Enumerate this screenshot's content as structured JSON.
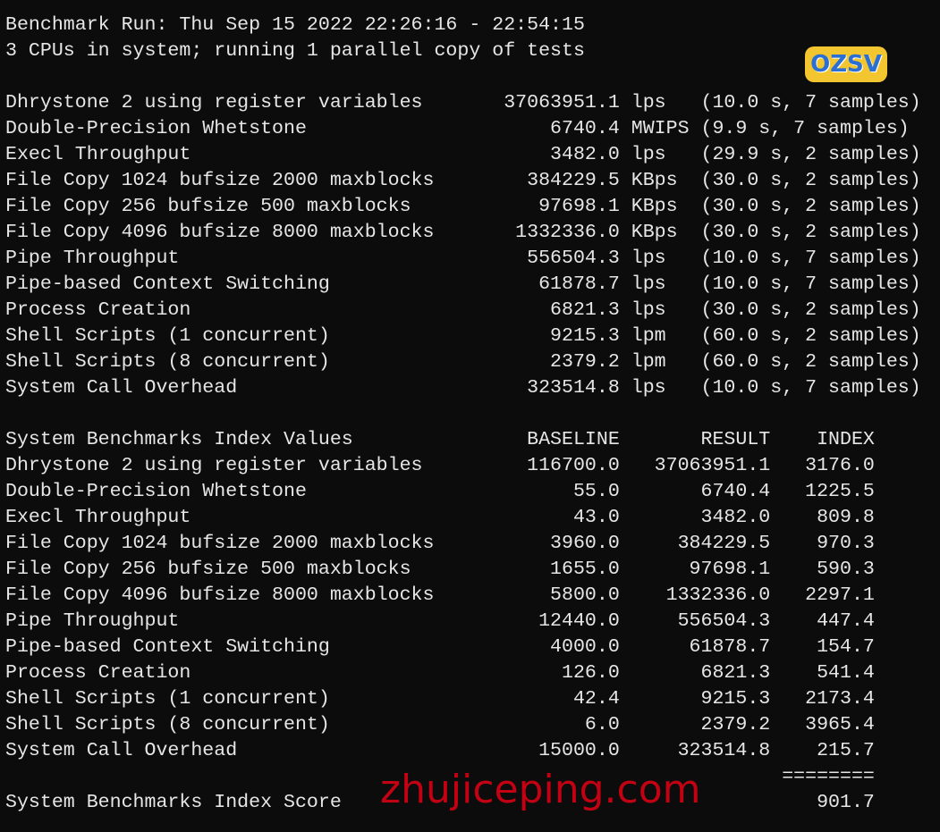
{
  "terminal": {
    "separator": "--------------------------------------------------------------------------------",
    "run_line": "Benchmark Run: Thu Sep 15 2022 22:26:16 - 22:54:15",
    "cpu_line": "3 CPUs in system; running 1 parallel copy of tests",
    "tests": [
      {
        "name": "Dhrystone 2 using register variables",
        "value": "37063951.1",
        "unit": "lps",
        "detail": "(10.0 s, 7 samples)"
      },
      {
        "name": "Double-Precision Whetstone",
        "value": "6740.4",
        "unit": "MWIPS",
        "detail": "(9.9 s, 7 samples)"
      },
      {
        "name": "Execl Throughput",
        "value": "3482.0",
        "unit": "lps",
        "detail": "(29.9 s, 2 samples)"
      },
      {
        "name": "File Copy 1024 bufsize 2000 maxblocks",
        "value": "384229.5",
        "unit": "KBps",
        "detail": "(30.0 s, 2 samples)"
      },
      {
        "name": "File Copy 256 bufsize 500 maxblocks",
        "value": "97698.1",
        "unit": "KBps",
        "detail": "(30.0 s, 2 samples)"
      },
      {
        "name": "File Copy 4096 bufsize 8000 maxblocks",
        "value": "1332336.0",
        "unit": "KBps",
        "detail": "(30.0 s, 2 samples)"
      },
      {
        "name": "Pipe Throughput",
        "value": "556504.3",
        "unit": "lps",
        "detail": "(10.0 s, 7 samples)"
      },
      {
        "name": "Pipe-based Context Switching",
        "value": "61878.7",
        "unit": "lps",
        "detail": "(10.0 s, 7 samples)"
      },
      {
        "name": "Process Creation",
        "value": "6821.3",
        "unit": "lps",
        "detail": "(30.0 s, 2 samples)"
      },
      {
        "name": "Shell Scripts (1 concurrent)",
        "value": "9215.3",
        "unit": "lpm",
        "detail": "(60.0 s, 2 samples)"
      },
      {
        "name": "Shell Scripts (8 concurrent)",
        "value": "2379.2",
        "unit": "lpm",
        "detail": "(60.0 s, 2 samples)"
      },
      {
        "name": "System Call Overhead",
        "value": "323514.8",
        "unit": "lps",
        "detail": "(10.0 s, 7 samples)"
      }
    ],
    "index_header": {
      "title": "System Benchmarks Index Values",
      "baseline": "BASELINE",
      "result": "RESULT",
      "index": "INDEX"
    },
    "index_rows": [
      {
        "name": "Dhrystone 2 using register variables",
        "baseline": "116700.0",
        "result": "37063951.1",
        "index": "3176.0"
      },
      {
        "name": "Double-Precision Whetstone",
        "baseline": "55.0",
        "result": "6740.4",
        "index": "1225.5"
      },
      {
        "name": "Execl Throughput",
        "baseline": "43.0",
        "result": "3482.0",
        "index": "809.8"
      },
      {
        "name": "File Copy 1024 bufsize 2000 maxblocks",
        "baseline": "3960.0",
        "result": "384229.5",
        "index": "970.3"
      },
      {
        "name": "File Copy 256 bufsize 500 maxblocks",
        "baseline": "1655.0",
        "result": "97698.1",
        "index": "590.3"
      },
      {
        "name": "File Copy 4096 bufsize 8000 maxblocks",
        "baseline": "5800.0",
        "result": "1332336.0",
        "index": "2297.1"
      },
      {
        "name": "Pipe Throughput",
        "baseline": "12440.0",
        "result": "556504.3",
        "index": "447.4"
      },
      {
        "name": "Pipe-based Context Switching",
        "baseline": "4000.0",
        "result": "61878.7",
        "index": "154.7"
      },
      {
        "name": "Process Creation",
        "baseline": "126.0",
        "result": "6821.3",
        "index": "541.4"
      },
      {
        "name": "Shell Scripts (1 concurrent)",
        "baseline": "42.4",
        "result": "9215.3",
        "index": "2173.4"
      },
      {
        "name": "Shell Scripts (8 concurrent)",
        "baseline": "6.0",
        "result": "2379.2",
        "index": "3965.4"
      },
      {
        "name": "System Call Overhead",
        "baseline": "15000.0",
        "result": "323514.8",
        "index": "215.7"
      }
    ],
    "score_rule": "========",
    "score_label": "System Benchmarks Index Score",
    "score_value": "901.7"
  },
  "watermark": {
    "text": "zhujiceping.com",
    "color": "#dc0014"
  },
  "logo": {
    "text": "OZSV"
  }
}
